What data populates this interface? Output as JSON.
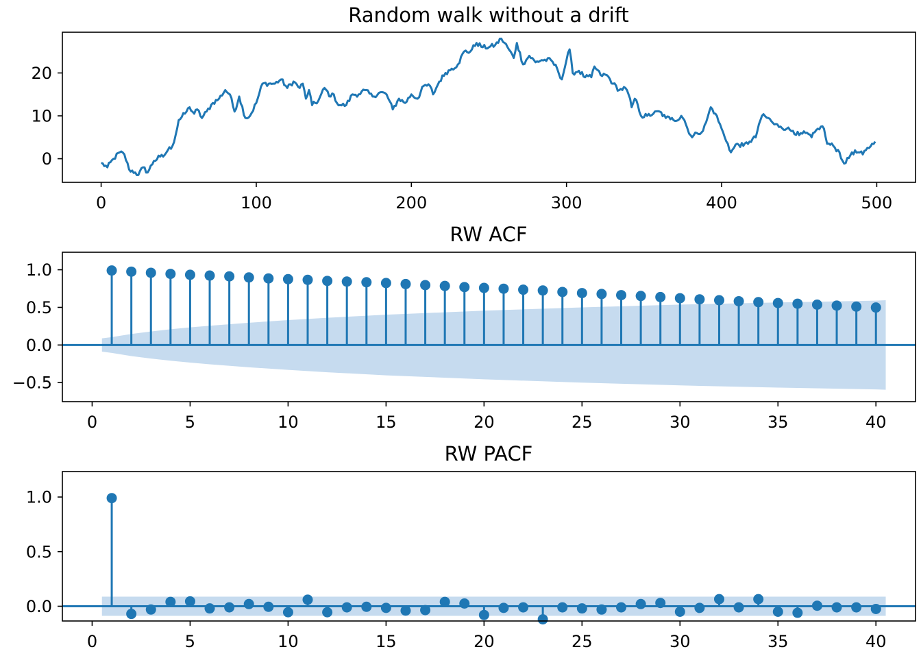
{
  "chart_data": [
    {
      "type": "line",
      "title": "Random walk without a drift",
      "xlabel": "",
      "ylabel": "",
      "xlim": [
        -25,
        525
      ],
      "ylim": [
        -5.5,
        29.5
      ],
      "xticks": [
        0,
        100,
        200,
        300,
        400,
        500
      ],
      "yticks": [
        0,
        10,
        20
      ],
      "color": "#1f77b4",
      "anchors": [
        [
          0,
          -1
        ],
        [
          4,
          -2
        ],
        [
          8,
          0
        ],
        [
          12,
          1.5
        ],
        [
          15,
          1
        ],
        [
          18,
          -2.5
        ],
        [
          22,
          -3.2
        ],
        [
          24,
          -3.8
        ],
        [
          27,
          -2
        ],
        [
          30,
          -3.2
        ],
        [
          34,
          -0.5
        ],
        [
          38,
          0.5
        ],
        [
          40,
          0.5
        ],
        [
          43,
          2
        ],
        [
          46,
          3
        ],
        [
          48,
          5.5
        ],
        [
          50,
          9
        ],
        [
          54,
          10.5
        ],
        [
          57,
          12
        ],
        [
          60,
          10.5
        ],
        [
          62,
          11.5
        ],
        [
          65,
          9.5
        ],
        [
          68,
          11
        ],
        [
          72,
          13
        ],
        [
          76,
          14
        ],
        [
          80,
          16
        ],
        [
          83,
          15
        ],
        [
          86,
          11
        ],
        [
          89,
          14.5
        ],
        [
          93,
          9.5
        ],
        [
          96,
          10
        ],
        [
          100,
          13
        ],
        [
          104,
          17.5
        ],
        [
          108,
          17.5
        ],
        [
          112,
          17.5
        ],
        [
          116,
          18.5
        ],
        [
          120,
          16.5
        ],
        [
          124,
          18
        ],
        [
          128,
          16.5
        ],
        [
          130,
          17.5
        ],
        [
          132,
          14
        ],
        [
          134,
          16
        ],
        [
          136,
          12.5
        ],
        [
          140,
          13.5
        ],
        [
          144,
          16.5
        ],
        [
          148,
          14.5
        ],
        [
          150,
          15
        ],
        [
          152,
          13
        ],
        [
          154,
          12.5
        ],
        [
          158,
          12.5
        ],
        [
          162,
          15
        ],
        [
          166,
          15
        ],
        [
          170,
          16
        ],
        [
          175,
          14.5
        ],
        [
          180,
          15.5
        ],
        [
          184,
          15
        ],
        [
          188,
          11.5
        ],
        [
          192,
          14
        ],
        [
          196,
          13
        ],
        [
          200,
          15
        ],
        [
          204,
          14
        ],
        [
          208,
          17
        ],
        [
          212,
          17
        ],
        [
          214,
          15
        ],
        [
          218,
          18
        ],
        [
          222,
          20
        ],
        [
          226,
          21
        ],
        [
          230,
          22
        ],
        [
          234,
          25
        ],
        [
          238,
          25
        ],
        [
          242,
          27
        ],
        [
          246,
          26
        ],
        [
          250,
          26
        ],
        [
          254,
          26.5
        ],
        [
          258,
          28
        ],
        [
          262,
          26
        ],
        [
          266,
          23.5
        ],
        [
          268,
          27
        ],
        [
          272,
          22
        ],
        [
          276,
          24
        ],
        [
          280,
          22.5
        ],
        [
          284,
          23
        ],
        [
          290,
          23
        ],
        [
          294,
          21
        ],
        [
          297,
          18.5
        ],
        [
          300,
          23
        ],
        [
          302,
          25.5
        ],
        [
          304,
          20
        ],
        [
          308,
          20.5
        ],
        [
          312,
          19
        ],
        [
          316,
          19
        ],
        [
          318,
          21.5
        ],
        [
          322,
          19.5
        ],
        [
          326,
          19.5
        ],
        [
          330,
          17.5
        ],
        [
          334,
          16
        ],
        [
          338,
          16.5
        ],
        [
          340,
          15
        ],
        [
          342,
          12
        ],
        [
          344,
          14
        ],
        [
          346,
          12.5
        ],
        [
          348,
          10
        ],
        [
          352,
          10
        ],
        [
          356,
          10.5
        ],
        [
          360,
          11
        ],
        [
          364,
          9.5
        ],
        [
          368,
          9.5
        ],
        [
          372,
          9
        ],
        [
          374,
          10
        ],
        [
          376,
          9
        ],
        [
          378,
          7
        ],
        [
          381,
          5
        ],
        [
          384,
          6
        ],
        [
          388,
          6.5
        ],
        [
          390,
          8.5
        ],
        [
          393,
          12
        ],
        [
          396,
          10.5
        ],
        [
          400,
          7
        ],
        [
          402,
          5
        ],
        [
          404,
          3.5
        ],
        [
          406,
          1.5
        ],
        [
          410,
          3.5
        ],
        [
          414,
          3
        ],
        [
          418,
          4
        ],
        [
          422,
          5
        ],
        [
          424,
          8
        ],
        [
          426,
          10
        ],
        [
          430,
          9.5
        ],
        [
          434,
          8
        ],
        [
          438,
          7.5
        ],
        [
          442,
          7
        ],
        [
          446,
          6.5
        ],
        [
          450,
          5.5
        ],
        [
          454,
          6
        ],
        [
          458,
          5
        ],
        [
          462,
          7
        ],
        [
          464,
          7.5
        ],
        [
          466,
          7
        ],
        [
          468,
          3.5
        ],
        [
          472,
          3
        ],
        [
          476,
          1.5
        ],
        [
          478,
          -0.5
        ],
        [
          480,
          -1
        ],
        [
          484,
          1.5
        ],
        [
          488,
          1.5
        ],
        [
          491,
          1
        ],
        [
          493,
          2
        ],
        [
          495,
          2.5
        ],
        [
          497,
          3.5
        ],
        [
          499,
          4
        ]
      ]
    },
    {
      "type": "stem",
      "title": "RW ACF",
      "xlabel": "",
      "ylabel": "",
      "xlim": [
        -1.52,
        42.02
      ],
      "ylim": [
        -0.753,
        1.233
      ],
      "xticks": [
        0,
        5,
        10,
        15,
        20,
        25,
        30,
        35,
        40
      ],
      "yticks": [
        -0.5,
        0.0,
        0.5,
        1.0
      ],
      "ytick_labels": [
        "−0.5",
        "0.0",
        "0.5",
        "1.0"
      ],
      "color": "#1f77b4",
      "band_color": "#c6dbef",
      "x": [
        1,
        2,
        3,
        4,
        5,
        6,
        7,
        8,
        9,
        10,
        11,
        12,
        13,
        14,
        15,
        16,
        17,
        18,
        19,
        20,
        21,
        22,
        23,
        24,
        25,
        26,
        27,
        28,
        29,
        30,
        31,
        32,
        33,
        34,
        35,
        36,
        37,
        38,
        39,
        40
      ],
      "values": [
        0.99,
        0.975,
        0.96,
        0.945,
        0.933,
        0.923,
        0.912,
        0.898,
        0.885,
        0.875,
        0.866,
        0.852,
        0.843,
        0.834,
        0.824,
        0.81,
        0.796,
        0.785,
        0.77,
        0.759,
        0.748,
        0.735,
        0.725,
        0.705,
        0.69,
        0.678,
        0.663,
        0.652,
        0.637,
        0.622,
        0.607,
        0.595,
        0.582,
        0.57,
        0.558,
        0.549,
        0.536,
        0.524,
        0.51,
        0.498
      ],
      "confidence_band": {
        "x": [
          0.5,
          1,
          2,
          3,
          4,
          5,
          6,
          8,
          10,
          12,
          15,
          20,
          25,
          30,
          35,
          40,
          40.5
        ],
        "upper": [
          0.088,
          0.105,
          0.147,
          0.18,
          0.209,
          0.234,
          0.256,
          0.296,
          0.331,
          0.362,
          0.403,
          0.456,
          0.5,
          0.537,
          0.566,
          0.59,
          0.595
        ]
      }
    },
    {
      "type": "stem",
      "title": "RW PACF",
      "xlabel": "",
      "ylabel": "",
      "xlim": [
        -1.52,
        42.02
      ],
      "ylim": [
        -0.135,
        1.233
      ],
      "xticks": [
        0,
        5,
        10,
        15,
        20,
        25,
        30,
        35,
        40
      ],
      "yticks": [
        0.0,
        0.5,
        1.0
      ],
      "ytick_labels": [
        "0.0",
        "0.5",
        "1.0"
      ],
      "color": "#1f77b4",
      "band_color": "#c6dbef",
      "x": [
        1,
        2,
        3,
        4,
        5,
        6,
        7,
        8,
        9,
        10,
        11,
        12,
        13,
        14,
        15,
        16,
        17,
        18,
        19,
        20,
        21,
        22,
        23,
        24,
        25,
        26,
        27,
        28,
        29,
        30,
        31,
        32,
        33,
        34,
        35,
        36,
        37,
        38,
        39,
        40
      ],
      "values": [
        0.99,
        -0.07,
        -0.03,
        0.04,
        0.045,
        -0.02,
        -0.01,
        0.02,
        -0.005,
        -0.055,
        0.06,
        -0.055,
        -0.01,
        -0.005,
        -0.015,
        -0.04,
        -0.035,
        0.04,
        0.025,
        -0.08,
        -0.015,
        -0.01,
        -0.12,
        -0.01,
        -0.02,
        -0.03,
        -0.01,
        0.02,
        0.03,
        -0.05,
        -0.015,
        0.065,
        -0.01,
        0.065,
        -0.05,
        -0.06,
        0.005,
        -0.01,
        -0.01,
        -0.025
      ],
      "confidence_band": {
        "x": [
          0.5,
          40.5
        ],
        "upper": [
          0.088,
          0.088
        ]
      }
    }
  ]
}
